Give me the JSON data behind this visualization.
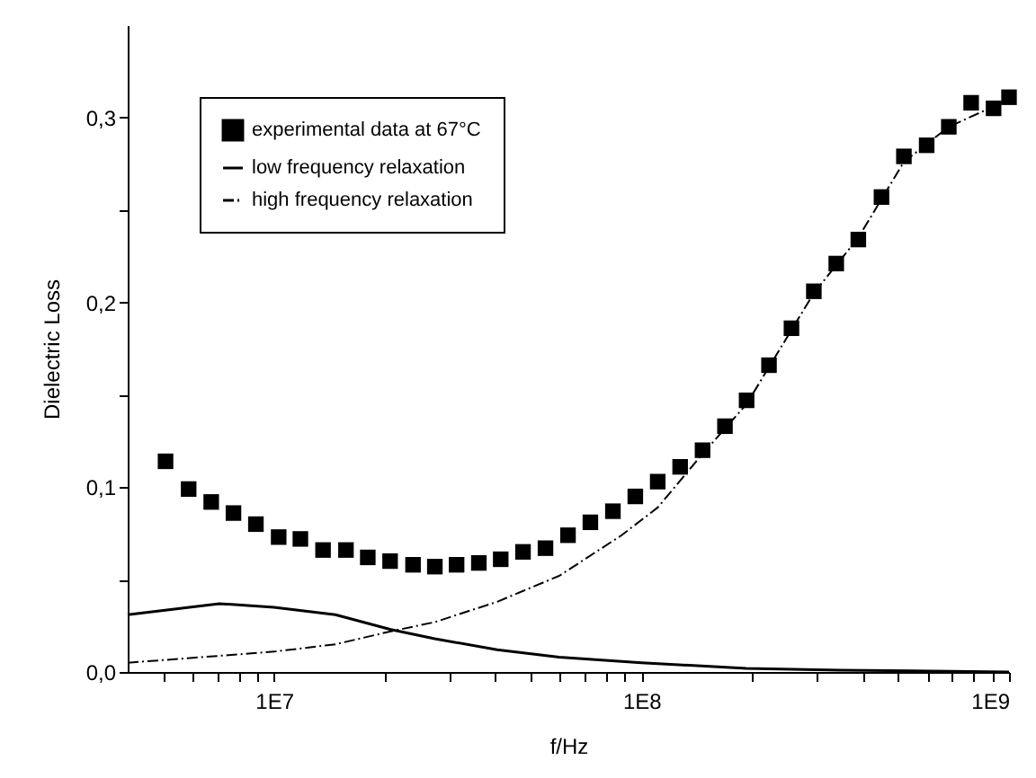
{
  "chart_data": {
    "type": "scatter",
    "xlabel": "f/Hz",
    "ylabel": "Dielectric Loss",
    "log": "x",
    "xlim": [
      4000000,
      1000000000
    ],
    "ylim": [
      0,
      0.35
    ],
    "xticks": [
      {
        "value": 10000000,
        "label": "1E7"
      },
      {
        "value": 100000000,
        "label": "1E8"
      },
      {
        "value": 1000000000,
        "label": "1E9"
      },
      {
        "value": 5000000,
        "label": null
      },
      {
        "value": 6000000,
        "label": null
      },
      {
        "value": 7000000,
        "label": null
      },
      {
        "value": 8000000,
        "label": null
      },
      {
        "value": 9000000,
        "label": null
      },
      {
        "value": 20000000,
        "label": null
      },
      {
        "value": 30000000,
        "label": null
      },
      {
        "value": 40000000,
        "label": null
      },
      {
        "value": 50000000,
        "label": null
      },
      {
        "value": 60000000,
        "label": null
      },
      {
        "value": 70000000,
        "label": null
      },
      {
        "value": 80000000,
        "label": null
      },
      {
        "value": 90000000,
        "label": null
      },
      {
        "value": 200000000,
        "label": null
      },
      {
        "value": 300000000,
        "label": null
      },
      {
        "value": 400000000,
        "label": null
      },
      {
        "value": 500000000,
        "label": null
      },
      {
        "value": 600000000,
        "label": null
      },
      {
        "value": 700000000,
        "label": null
      },
      {
        "value": 800000000,
        "label": null
      },
      {
        "value": 900000000,
        "label": null
      }
    ],
    "yticks": [
      {
        "value": 0,
        "label": "0,0"
      },
      {
        "value": 0.1,
        "label": "0,1"
      },
      {
        "value": 0.2,
        "label": "0,2"
      },
      {
        "value": 0.3,
        "label": "0,3"
      },
      {
        "value": 0.05,
        "label": null
      },
      {
        "value": 0.15,
        "label": null
      },
      {
        "value": 0.25,
        "label": null
      }
    ],
    "grid": false,
    "legend": "top left",
    "series": [
      {
        "name": "experimental data at 67°C",
        "marker": "square",
        "color": "#000000",
        "x": [
          5070000,
          5860000,
          6750000,
          7760000,
          8930000,
          10300000,
          11800000,
          13600000,
          15700000,
          18000000,
          20700000,
          23900000,
          27400000,
          31400000,
          36100000,
          41400000,
          47600000,
          54800000,
          63100000,
          72600000,
          83600000,
          96200000,
          110700000,
          127400000,
          146600000,
          168700000,
          193200000,
          222300000,
          255900000,
          294400000,
          338800000,
          389000000,
          449800000,
          517600000,
          597000000,
          685800000,
          788800000,
          907800000,
          1000000000
        ],
        "values": [
          0.114,
          0.099,
          0.092,
          0.086,
          0.08,
          0.073,
          0.072,
          0.066,
          0.066,
          0.062,
          0.06,
          0.058,
          0.057,
          0.058,
          0.059,
          0.061,
          0.065,
          0.067,
          0.074,
          0.081,
          0.087,
          0.095,
          0.103,
          0.111,
          0.12,
          0.133,
          0.147,
          0.166,
          0.186,
          0.206,
          0.221,
          0.234,
          0.257,
          0.279,
          0.285,
          0.295,
          0.308,
          0.305,
          0.311
        ]
      },
      {
        "name": "low frequency relaxation",
        "type": "line",
        "line_style": "solid",
        "color": "#000000",
        "x": [
          4000000,
          7100000,
          10000000,
          14700000,
          20800000,
          27400000,
          40500000,
          59700000,
          100000000,
          192800000,
          346700000,
          1000000000
        ],
        "values": [
          0.031,
          0.037,
          0.035,
          0.031,
          0.023,
          0.018,
          0.012,
          0.008,
          0.005,
          0.002,
          0.001,
          0.0
        ]
      },
      {
        "name": "high frequency relaxation",
        "type": "line",
        "line_style": "dashed",
        "color": "#000000",
        "x": [
          4000000,
          10000000,
          14700000,
          20800000,
          27400000,
          40500000,
          59700000,
          88300000,
          110700000,
          146600000,
          193200000,
          222300000,
          294400000,
          389000000,
          517600000,
          685800000,
          907800000,
          1000000000
        ],
        "values": [
          0.005,
          0.011,
          0.015,
          0.022,
          0.027,
          0.038,
          0.052,
          0.074,
          0.089,
          0.118,
          0.145,
          0.165,
          0.205,
          0.235,
          0.276,
          0.295,
          0.306,
          0.31
        ]
      }
    ]
  }
}
